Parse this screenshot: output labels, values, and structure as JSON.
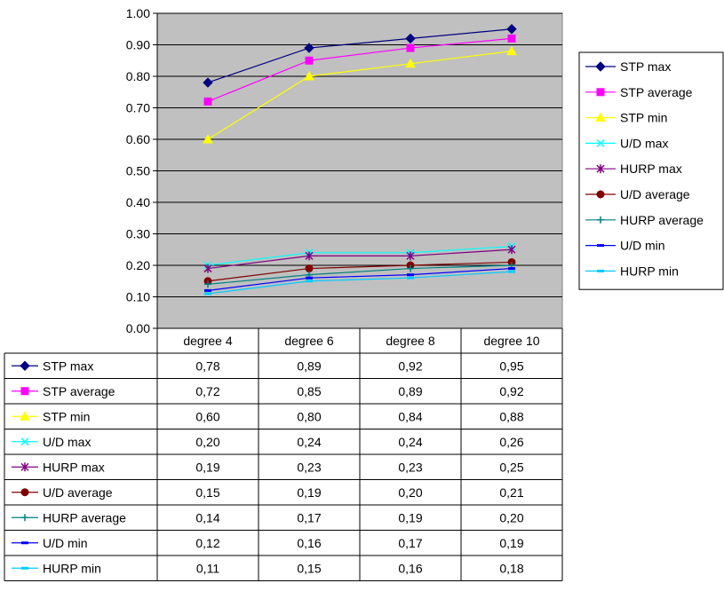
{
  "chart_data": {
    "type": "line",
    "title": "",
    "xlabel": "",
    "ylabel": "",
    "categories": [
      "degree 4",
      "degree 6",
      "degree 8",
      "degree 10"
    ],
    "ylim": [
      0,
      1
    ],
    "yticks": [
      "0.00",
      "0.10",
      "0.20",
      "0.30",
      "0.40",
      "0.50",
      "0.60",
      "0.70",
      "0.80",
      "0.90",
      "1.00"
    ],
    "grid": true,
    "plot_background": "#c0c0c0",
    "legend_position": "right",
    "data_table": true,
    "series": [
      {
        "name": "STP max",
        "color": "#000080",
        "marker": "diamond",
        "values": [
          0.78,
          0.89,
          0.92,
          0.95
        ],
        "labels": [
          "0,78",
          "0,89",
          "0,92",
          "0,95"
        ]
      },
      {
        "name": "STP average",
        "color": "#ff00ff",
        "marker": "square",
        "values": [
          0.72,
          0.85,
          0.89,
          0.92
        ],
        "labels": [
          "0,72",
          "0,85",
          "0,89",
          "0,92"
        ]
      },
      {
        "name": "STP min",
        "color": "#ffff00",
        "marker": "triangle",
        "values": [
          0.6,
          0.8,
          0.84,
          0.88
        ],
        "labels": [
          "0,60",
          "0,80",
          "0,84",
          "0,88"
        ]
      },
      {
        "name": "U/D max",
        "color": "#00ffff",
        "marker": "x",
        "values": [
          0.2,
          0.24,
          0.24,
          0.26
        ],
        "labels": [
          "0,20",
          "0,24",
          "0,24",
          "0,26"
        ]
      },
      {
        "name": "HURP max",
        "color": "#800080",
        "marker": "star",
        "values": [
          0.19,
          0.23,
          0.23,
          0.25
        ],
        "labels": [
          "0,19",
          "0,23",
          "0,23",
          "0,25"
        ]
      },
      {
        "name": "U/D average",
        "color": "#800000",
        "marker": "circle",
        "values": [
          0.15,
          0.19,
          0.2,
          0.21
        ],
        "labels": [
          "0,15",
          "0,19",
          "0,20",
          "0,21"
        ]
      },
      {
        "name": "HURP average",
        "color": "#008080",
        "marker": "plus",
        "values": [
          0.14,
          0.17,
          0.19,
          0.2
        ],
        "labels": [
          "0,14",
          "0,17",
          "0,19",
          "0,20"
        ]
      },
      {
        "name": "U/D  min",
        "color": "#0000ff",
        "marker": "dash",
        "values": [
          0.12,
          0.16,
          0.17,
          0.19
        ],
        "labels": [
          "0,12",
          "0,16",
          "0,17",
          "0,19"
        ]
      },
      {
        "name": "HURP min",
        "color": "#00ccff",
        "marker": "dash",
        "values": [
          0.11,
          0.15,
          0.16,
          0.18
        ],
        "labels": [
          "0,11",
          "0,15",
          "0,16",
          "0,18"
        ]
      }
    ]
  }
}
